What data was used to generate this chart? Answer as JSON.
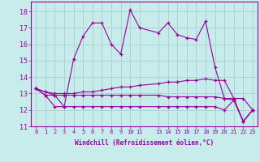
{
  "xlabel": "Windchill (Refroidissement éolien,°C)",
  "background_color": "#c8ecec",
  "grid_color": "#aad4d4",
  "line_color": "#990099",
  "x_ticks": [
    0,
    1,
    2,
    3,
    4,
    5,
    6,
    7,
    8,
    9,
    10,
    11,
    13,
    14,
    15,
    16,
    17,
    18,
    19,
    20,
    21,
    22,
    23
  ],
  "ylim": [
    11,
    18.6
  ],
  "xlim": [
    -0.5,
    23.5
  ],
  "yticks": [
    11,
    12,
    13,
    14,
    15,
    16,
    17,
    18
  ],
  "series": [
    {
      "x": [
        0,
        1,
        2,
        3,
        4,
        5,
        6,
        7,
        8,
        9,
        10,
        11,
        13,
        14,
        15,
        16,
        17,
        18,
        19,
        20,
        21,
        22,
        23
      ],
      "y": [
        13.3,
        13.1,
        12.9,
        12.2,
        15.1,
        16.5,
        17.3,
        17.3,
        16.0,
        15.4,
        18.1,
        17.0,
        16.7,
        17.3,
        16.6,
        16.4,
        16.3,
        17.4,
        14.6,
        12.7,
        12.6,
        11.3,
        12.0
      ]
    },
    {
      "x": [
        0,
        1,
        2,
        3,
        4,
        5,
        6,
        7,
        8,
        9,
        10,
        11,
        13,
        14,
        15,
        16,
        17,
        18,
        19,
        20,
        21,
        22,
        23
      ],
      "y": [
        13.3,
        13.1,
        13.0,
        13.0,
        13.0,
        13.1,
        13.1,
        13.2,
        13.3,
        13.4,
        13.4,
        13.5,
        13.6,
        13.7,
        13.7,
        13.8,
        13.8,
        13.9,
        13.8,
        13.8,
        12.7,
        12.7,
        12.0
      ]
    },
    {
      "x": [
        0,
        1,
        2,
        3,
        4,
        5,
        6,
        7,
        8,
        9,
        10,
        11,
        13,
        14,
        15,
        16,
        17,
        18,
        19,
        20,
        21,
        22,
        23
      ],
      "y": [
        13.3,
        12.9,
        12.9,
        12.9,
        12.9,
        12.9,
        12.9,
        12.9,
        12.9,
        12.9,
        12.9,
        12.9,
        12.9,
        12.8,
        12.8,
        12.8,
        12.8,
        12.8,
        12.8,
        12.7,
        12.7,
        11.3,
        12.0
      ]
    },
    {
      "x": [
        0,
        1,
        2,
        3,
        4,
        5,
        6,
        7,
        8,
        9,
        10,
        11,
        13,
        14,
        15,
        16,
        17,
        18,
        19,
        20,
        21,
        22,
        23
      ],
      "y": [
        13.3,
        12.9,
        12.2,
        12.2,
        12.2,
        12.2,
        12.2,
        12.2,
        12.2,
        12.2,
        12.2,
        12.2,
        12.2,
        12.2,
        12.2,
        12.2,
        12.2,
        12.2,
        12.2,
        12.0,
        12.6,
        11.3,
        12.0
      ]
    }
  ]
}
